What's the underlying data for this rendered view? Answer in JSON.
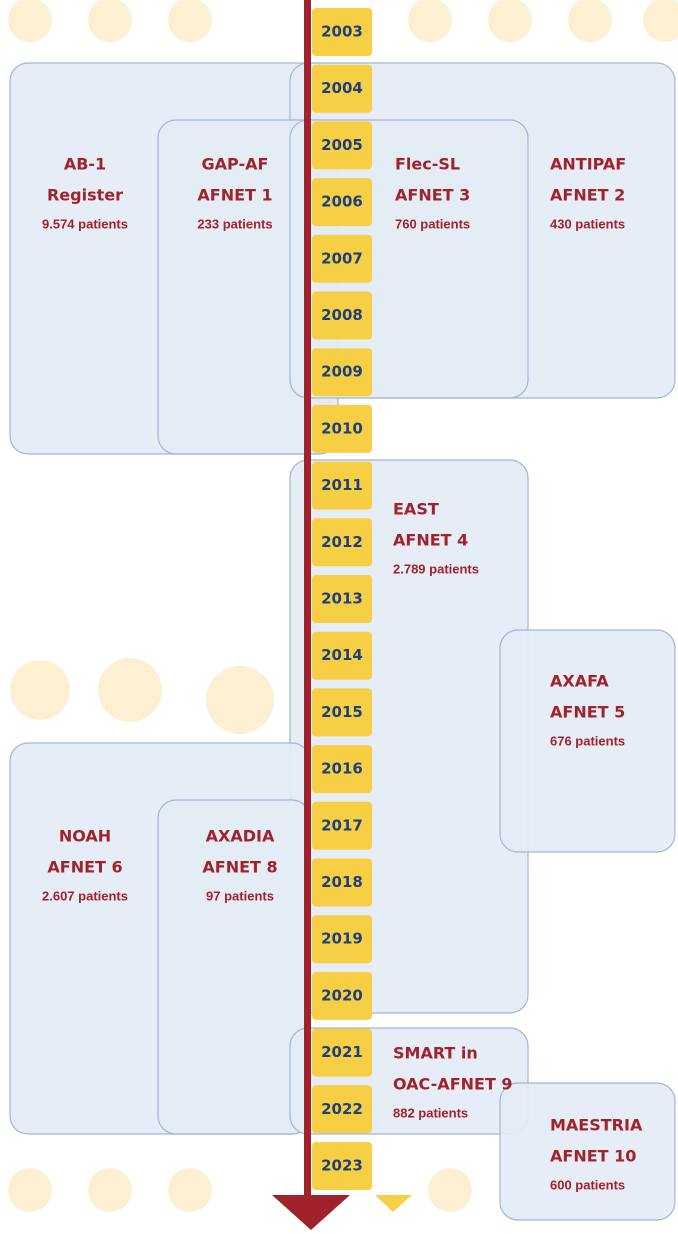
{
  "years": [
    "2003",
    "2004",
    "2005",
    "2006",
    "2007",
    "2008",
    "2009",
    "2010",
    "2011",
    "2012",
    "2013",
    "2014",
    "2015",
    "2016",
    "2017",
    "2018",
    "2019",
    "2020",
    "2021",
    "2022",
    "2023"
  ],
  "studies": [
    {
      "name": [
        "AB-1",
        "Register"
      ],
      "patients": "9.574 patients"
    },
    {
      "name": [
        "ANTIPAF",
        "AFNET 2"
      ],
      "patients": "430 patients"
    },
    {
      "name": [
        "GAP-AF",
        "AFNET 1"
      ],
      "patients": "233 patients"
    },
    {
      "name": [
        "Flec-SL",
        "AFNET 3"
      ],
      "patients": "760 patients"
    },
    {
      "name": [
        "EAST",
        "AFNET 4"
      ],
      "patients": "2.789 patients"
    },
    {
      "name": [
        "AXAFA",
        "AFNET 5"
      ],
      "patients": "676 patients"
    },
    {
      "name": [
        "NOAH",
        "AFNET 6"
      ],
      "patients": "2.607 patients"
    },
    {
      "name": [
        "AXADIA",
        "AFNET 8"
      ],
      "patients": "97 patients"
    },
    {
      "name": [
        "SMART in",
        "OAC-AFNET 9"
      ],
      "patients": "882 patients"
    },
    {
      "name": [
        "MAESTRIA",
        "AFNET 10"
      ],
      "patients": "600 patients"
    }
  ]
}
